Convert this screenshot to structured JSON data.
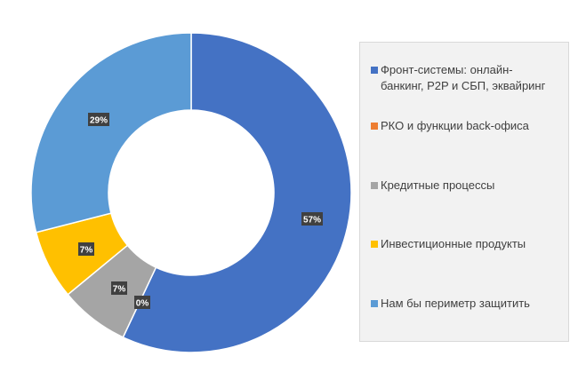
{
  "chart_data": {
    "type": "pie",
    "variant": "donut",
    "categories": [
      "Фронт-системы: онлайн-банкинг, P2P и СБП, эквайринг",
      "РКО и функции back-офиса",
      "Кредитные процессы",
      "Инвестиционные продукты",
      "Нам бы периметр защитить"
    ],
    "legend_lines": [
      [
        "Фронт-системы: онлайн-",
        "банкинг, P2P и СБП, эквайринг"
      ],
      [
        "РКО и функции back-офиса"
      ],
      [
        "Кредитные процессы"
      ],
      [
        "Инвестиционные продукты"
      ],
      [
        "Нам бы периметр защитить"
      ]
    ],
    "values": [
      57,
      0,
      7,
      7,
      29
    ],
    "data_labels": [
      "57%",
      "0%",
      "7%",
      "7%",
      "29%"
    ],
    "colors": [
      "#4472c4",
      "#ed7d31",
      "#a5a5a5",
      "#ffc000",
      "#5b9bd5"
    ],
    "start_angle_deg": 0,
    "direction": "clockwise",
    "legend_position": "right"
  }
}
